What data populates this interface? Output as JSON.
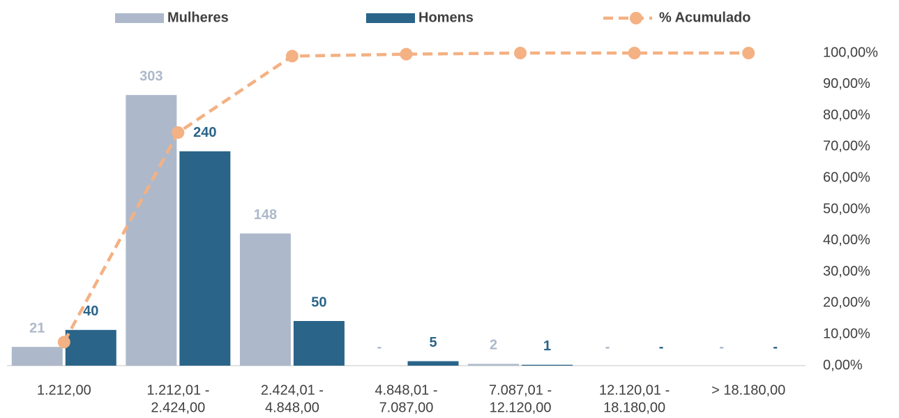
{
  "chart_data": {
    "type": "bar",
    "categories": [
      [
        "1.212,00"
      ],
      [
        "1.212,01 -",
        "2.424,00"
      ],
      [
        "2.424,01 -",
        "4.848,00"
      ],
      [
        "4.848,01 -",
        "7.087,00"
      ],
      [
        "7.087,01 -",
        "12.120,00"
      ],
      [
        "12.120,01 -",
        "18.180,00"
      ],
      [
        "> 18.180,00"
      ]
    ],
    "series": [
      {
        "name": "Mulheres",
        "color": "#adb9ca",
        "values": [
          21,
          303,
          148,
          0,
          2,
          0,
          0
        ],
        "value_labels": [
          "21",
          "303",
          "148",
          "-",
          "2",
          "-",
          "-"
        ]
      },
      {
        "name": "Homens",
        "color": "#2a6489",
        "values": [
          40,
          240,
          50,
          5,
          1,
          0,
          0
        ],
        "value_labels": [
          "40",
          "240",
          "50",
          "5",
          "1",
          "-",
          "-"
        ]
      },
      {
        "name": "% Acumulado",
        "type": "line",
        "axis": "y2",
        "color": "#f4b183",
        "values": [
          7.53,
          74.57,
          99.01,
          99.63,
          100,
          100,
          100
        ]
      }
    ],
    "ylim": [
      0,
      350
    ],
    "y2lim": [
      0,
      100
    ],
    "y2ticks": [
      {
        "value": 0,
        "label": "0,00%"
      },
      {
        "value": 10,
        "label": "10,00%"
      },
      {
        "value": 20,
        "label": "20,00%"
      },
      {
        "value": 30,
        "label": "30,00%"
      },
      {
        "value": 40,
        "label": "40,00%"
      },
      {
        "value": 50,
        "label": "50,00%"
      },
      {
        "value": 60,
        "label": "60,00%"
      },
      {
        "value": 70,
        "label": "70,00%"
      },
      {
        "value": 80,
        "label": "80,00%"
      },
      {
        "value": 90,
        "label": "90,00%"
      },
      {
        "value": 100,
        "label": "100,00%"
      }
    ],
    "legend": "top"
  }
}
